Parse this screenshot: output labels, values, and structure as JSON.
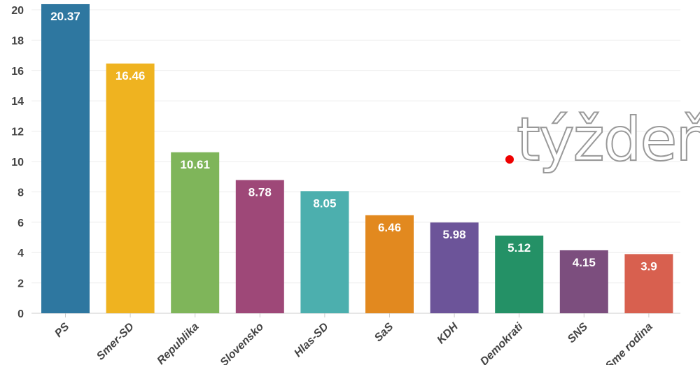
{
  "chart_data": {
    "type": "bar",
    "title": "",
    "xlabel": "",
    "ylabel": "",
    "ylim": [
      0,
      20
    ],
    "yticks": [
      0,
      2,
      4,
      6,
      8,
      10,
      12,
      14,
      16,
      18,
      20
    ],
    "grid": true,
    "categories": [
      "PS",
      "Smer-SD",
      "Republika",
      "Slovensko",
      "Hlas-SD",
      "SaS",
      "KDH",
      "Demokrati",
      "SNS",
      "Sme rodina"
    ],
    "values": [
      20.37,
      16.46,
      10.61,
      8.78,
      8.05,
      6.46,
      5.98,
      5.12,
      4.15,
      3.9
    ],
    "value_labels": [
      "20.37",
      "16.46",
      "10.61",
      "8.78",
      "8.05",
      "6.46",
      "5.98",
      "5.12",
      "4.15",
      "3.9"
    ],
    "colors": [
      "#2e77a0",
      "#efb320",
      "#7fb55a",
      "#9e4878",
      "#4cafae",
      "#e2891f",
      "#6c5499",
      "#249166",
      "#7c4e7e",
      "#d8604f"
    ]
  },
  "watermark": "týždeň"
}
